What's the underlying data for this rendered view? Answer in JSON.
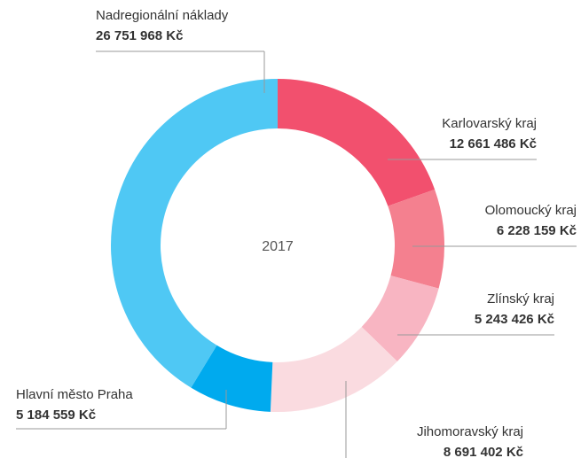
{
  "chart_data": {
    "type": "donut",
    "center_label": "2017",
    "series": [
      {
        "name": "Karlovarský kraj",
        "color": "#f2506e",
        "value": 12661486,
        "value_label": "12 661 486 Kč"
      },
      {
        "name": "Olomoucký kraj",
        "color": "#f4808f",
        "value": 6228159,
        "value_label": "6 228 159 Kč"
      },
      {
        "name": "Zlínský kraj",
        "color": "#f8b5c2",
        "value": 5243426,
        "value_label": "5 243 426 Kč"
      },
      {
        "name": "Jihomoravský kraj",
        "color": "#fadbe0",
        "value": 8691402,
        "value_label": "8 691 402 Kč"
      },
      {
        "name": "Hlavní město Praha",
        "color": "#00aaee",
        "value": 5184559,
        "value_label": "5 184 559 Kč"
      },
      {
        "name": "Nadregionální náklady",
        "color": "#4fc8f4",
        "value": 26751968,
        "value_label": "26 751 968 Kč"
      }
    ]
  }
}
